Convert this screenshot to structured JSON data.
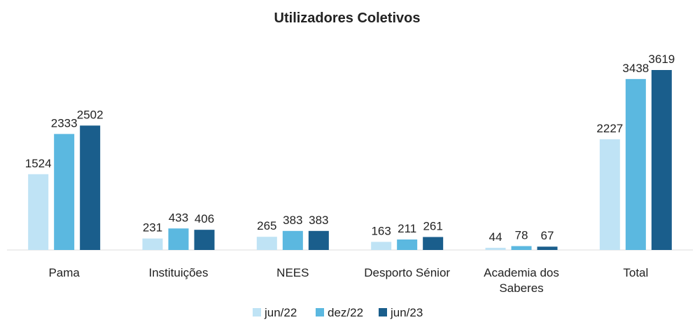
{
  "chart_data": {
    "type": "bar",
    "title": "Utilizadores Coletivos",
    "categories": [
      "Pama",
      "Instituições",
      "NEES",
      "Desporto Sénior",
      "Academia dos Saberes",
      "Total"
    ],
    "series": [
      {
        "name": "jun/22",
        "color": "#bfe3f5",
        "values": [
          1524,
          231,
          265,
          163,
          44,
          2227
        ]
      },
      {
        "name": "dez/22",
        "color": "#5bb8e0",
        "values": [
          2333,
          433,
          383,
          211,
          78,
          3438
        ]
      },
      {
        "name": "jun/23",
        "color": "#1a5e8c",
        "values": [
          2502,
          406,
          383,
          261,
          67,
          3619
        ]
      }
    ],
    "legend": "bottom"
  }
}
